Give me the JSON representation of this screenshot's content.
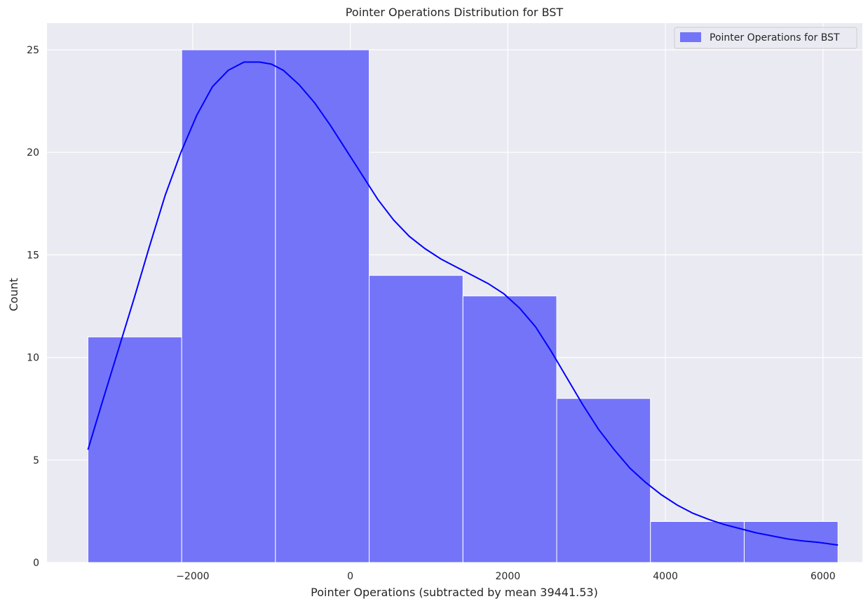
{
  "chart_data": {
    "type": "histogram",
    "title": "Pointer Operations Distribution for BST",
    "xlabel": "Pointer Operations (subtracted by mean 39441.53)",
    "ylabel": "Count",
    "xlim": [
      -3850,
      6500
    ],
    "ylim": [
      0,
      26.3
    ],
    "xticks": [
      -2000,
      0,
      2000,
      4000,
      6000
    ],
    "xtick_labels": [
      "−2000",
      "0",
      "2000",
      "4000",
      "6000"
    ],
    "yticks": [
      0,
      5,
      10,
      15,
      20,
      25
    ],
    "ytick_labels": [
      "0",
      "5",
      "10",
      "15",
      "20",
      "25"
    ],
    "bins": [
      {
        "x0": -3330,
        "x1": -2140,
        "count": 11
      },
      {
        "x0": -2140,
        "x1": -950,
        "count": 25
      },
      {
        "x0": -950,
        "x1": 240,
        "count": 25
      },
      {
        "x0": 240,
        "x1": 1430,
        "count": 14
      },
      {
        "x0": 1430,
        "x1": 2620,
        "count": 13
      },
      {
        "x0": 2620,
        "x1": 3810,
        "count": 8
      },
      {
        "x0": 3810,
        "x1": 5000,
        "count": 2
      },
      {
        "x0": 5000,
        "x1": 6190,
        "count": 2
      }
    ],
    "kde": {
      "x": [
        -3330,
        -3150,
        -2950,
        -2750,
        -2550,
        -2350,
        -2150,
        -1950,
        -1750,
        -1550,
        -1350,
        -1150,
        -1000,
        -850,
        -650,
        -450,
        -250,
        -50,
        150,
        350,
        550,
        750,
        950,
        1150,
        1350,
        1550,
        1750,
        1950,
        2150,
        2350,
        2550,
        2750,
        2950,
        3150,
        3350,
        3550,
        3750,
        3950,
        4150,
        4350,
        4550,
        4750,
        4950,
        5150,
        5350,
        5550,
        5750,
        5950,
        6190
      ],
      "y": [
        5.5,
        7.8,
        10.3,
        12.8,
        15.4,
        17.9,
        20.0,
        21.8,
        23.2,
        24.0,
        24.4,
        24.4,
        24.3,
        24.0,
        23.3,
        22.4,
        21.3,
        20.1,
        18.9,
        17.7,
        16.7,
        15.9,
        15.3,
        14.8,
        14.4,
        14.0,
        13.6,
        13.1,
        12.4,
        11.5,
        10.3,
        9.0,
        7.7,
        6.5,
        5.5,
        4.6,
        3.9,
        3.3,
        2.8,
        2.4,
        2.1,
        1.85,
        1.65,
        1.45,
        1.3,
        1.15,
        1.05,
        0.98,
        0.85
      ]
    },
    "colors": {
      "background": "#eaeaf2",
      "grid": "#ffffff",
      "bar_fill": "#7474f8",
      "bar_edge": "#ffffff",
      "kde_line": "#0000ff",
      "legend_border": "#cccccc"
    },
    "legend": {
      "position": "upper-right",
      "entries": [
        {
          "label": "Pointer Operations for BST",
          "color": "#7474f8"
        }
      ]
    },
    "grid": true
  }
}
